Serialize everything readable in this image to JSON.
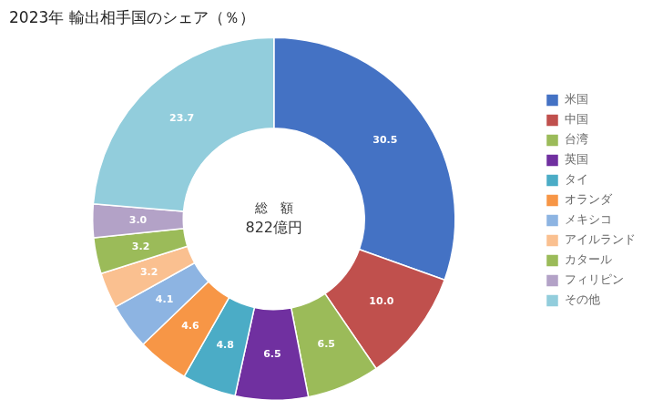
{
  "chart_data": {
    "type": "doughnut",
    "title": "2023年 輸出相手国のシェア（％）",
    "annotations": [
      "総　額",
      "822億円"
    ],
    "categories": [
      "米国",
      "中国",
      "台湾",
      "英国",
      "タイ",
      "オランダ",
      "メキシコ",
      "アイルランド",
      "カタール",
      "フィリピン",
      "その他"
    ],
    "values": [
      30.5,
      10.0,
      6.5,
      6.5,
      4.8,
      4.6,
      4.1,
      3.2,
      3.2,
      3.0,
      23.7
    ],
    "value_labels": [
      "30.5",
      "10.0",
      "6.5",
      "6.5",
      "4.8",
      "4.6",
      "4.1",
      "3.2",
      "3.2",
      "3.0",
      "23.7"
    ],
    "colors": [
      "#4472C4",
      "#C0504D",
      "#9BBB59",
      "#7030A0",
      "#4BACC6",
      "#F79646",
      "#8DB4E2",
      "#FAC090",
      "#9BBB59",
      "#B3A2C7",
      "#92CDDC"
    ],
    "data_labels": true,
    "legend": "right"
  }
}
